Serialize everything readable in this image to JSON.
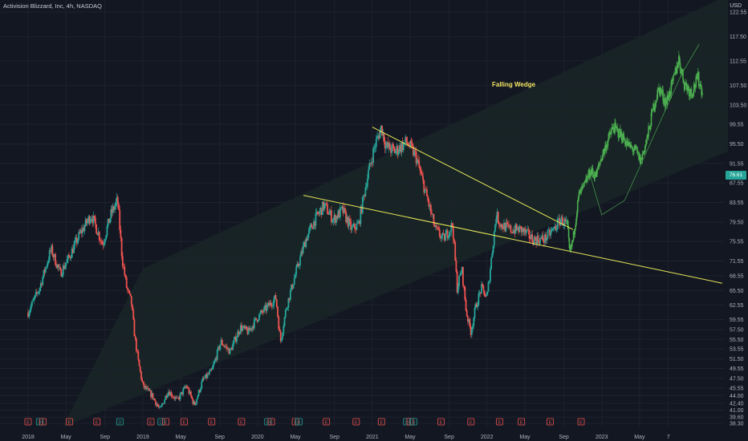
{
  "header": {
    "title": "Activision Blizzard, Inc, 4h, NASDAQ",
    "currency": "USD",
    "last_price": "76.61"
  },
  "annotation": "Falling Wedge",
  "colors": {
    "background": "#131722",
    "up": "#26a69a",
    "down": "#ef5350",
    "projection": "#4caf50",
    "wedge": "#e8e85a",
    "channel": "#1f3a2a",
    "event_earnings": "#ef5350",
    "event_dividend": "#26a69a"
  },
  "chart_data": {
    "type": "candlestick",
    "title": "Activision Blizzard, Inc, 4h, NASDAQ",
    "ylabel": "USD",
    "ylim": [
      38.3,
      125
    ],
    "y_ticks": [
      "122.55",
      "117.50",
      "112.55",
      "107.50",
      "103.50",
      "99.55",
      "95.50",
      "91.55",
      "87.55",
      "83.55",
      "79.50",
      "75.55",
      "71.55",
      "68.55",
      "65.50",
      "62.55",
      "59.55",
      "57.50",
      "55.50",
      "53.55",
      "51.50",
      "49.55",
      "47.50",
      "45.55",
      "44.00",
      "42.40",
      "41.00",
      "39.60",
      "38.30"
    ],
    "x_ticks": [
      "2018",
      "May",
      "Sep",
      "2019",
      "May",
      "Sep",
      "2020",
      "May",
      "Sep",
      "2021",
      "May",
      "Sep",
      "2022",
      "May",
      "Sep",
      "2023",
      "May",
      "7"
    ],
    "price_path": [
      [
        2018.0,
        61
      ],
      [
        2018.1,
        66
      ],
      [
        2018.2,
        74
      ],
      [
        2018.28,
        69
      ],
      [
        2018.35,
        72
      ],
      [
        2018.45,
        77
      ],
      [
        2018.55,
        81
      ],
      [
        2018.65,
        75
      ],
      [
        2018.72,
        81
      ],
      [
        2018.78,
        84
      ],
      [
        2018.82,
        72
      ],
      [
        2018.86,
        66
      ],
      [
        2018.9,
        63
      ],
      [
        2018.93,
        56
      ],
      [
        2018.96,
        51
      ],
      [
        2019.0,
        46
      ],
      [
        2019.08,
        44
      ],
      [
        2019.15,
        41
      ],
      [
        2019.22,
        45
      ],
      [
        2019.3,
        43
      ],
      [
        2019.38,
        46
      ],
      [
        2019.45,
        42
      ],
      [
        2019.52,
        47
      ],
      [
        2019.6,
        49
      ],
      [
        2019.68,
        55
      ],
      [
        2019.76,
        53
      ],
      [
        2019.85,
        58
      ],
      [
        2019.92,
        57
      ],
      [
        2020.0,
        60
      ],
      [
        2020.08,
        62
      ],
      [
        2020.16,
        64
      ],
      [
        2020.2,
        55
      ],
      [
        2020.25,
        62
      ],
      [
        2020.32,
        68
      ],
      [
        2020.42,
        76
      ],
      [
        2020.5,
        80
      ],
      [
        2020.58,
        83
      ],
      [
        2020.66,
        80
      ],
      [
        2020.74,
        82
      ],
      [
        2020.82,
        78
      ],
      [
        2020.88,
        79
      ],
      [
        2020.95,
        88
      ],
      [
        2021.02,
        95
      ],
      [
        2021.08,
        99
      ],
      [
        2021.12,
        95
      ],
      [
        2021.2,
        94
      ],
      [
        2021.3,
        96
      ],
      [
        2021.38,
        93
      ],
      [
        2021.46,
        86
      ],
      [
        2021.55,
        78
      ],
      [
        2021.62,
        76
      ],
      [
        2021.7,
        79
      ],
      [
        2021.74,
        66
      ],
      [
        2021.78,
        70
      ],
      [
        2021.82,
        61
      ],
      [
        2021.86,
        57
      ],
      [
        2021.9,
        62
      ],
      [
        2021.95,
        66
      ],
      [
        2022.0,
        64
      ],
      [
        2022.08,
        81
      ],
      [
        2022.12,
        79
      ],
      [
        2022.2,
        78
      ],
      [
        2022.3,
        78
      ],
      [
        2022.4,
        76
      ],
      [
        2022.5,
        76
      ],
      [
        2022.58,
        78
      ],
      [
        2022.64,
        80
      ],
      [
        2022.7,
        79
      ]
    ],
    "projection_path": [
      [
        2022.7,
        79
      ],
      [
        2022.72,
        73
      ],
      [
        2022.75,
        76
      ],
      [
        2022.8,
        85
      ],
      [
        2022.85,
        87
      ],
      [
        2022.9,
        90
      ],
      [
        2022.95,
        89
      ],
      [
        2023.0,
        93
      ],
      [
        2023.05,
        96
      ],
      [
        2023.1,
        99
      ],
      [
        2023.18,
        97
      ],
      [
        2023.24,
        95
      ],
      [
        2023.3,
        94
      ],
      [
        2023.34,
        92
      ],
      [
        2023.4,
        97
      ],
      [
        2023.45,
        103
      ],
      [
        2023.5,
        107
      ],
      [
        2023.56,
        104
      ],
      [
        2023.62,
        108
      ],
      [
        2023.67,
        113
      ],
      [
        2023.72,
        108
      ],
      [
        2023.78,
        106
      ],
      [
        2023.84,
        109
      ],
      [
        2023.88,
        106
      ]
    ],
    "projection_curve": [
      [
        2022.9,
        89
      ],
      [
        2023.0,
        81
      ],
      [
        2023.2,
        84
      ],
      [
        2023.45,
        97
      ],
      [
        2023.7,
        110
      ],
      [
        2023.85,
        116
      ]
    ],
    "wedge_upper": [
      [
        2021.0,
        99
      ],
      [
        2022.75,
        78
      ]
    ],
    "wedge_lower": [
      [
        2020.4,
        85
      ],
      [
        2024.05,
        67
      ]
    ],
    "channel": {
      "upper": [
        [
          2019.0,
          70
        ],
        [
          2024.1,
          126
        ]
      ],
      "lower": [
        [
          2018.3,
          37.5
        ],
        [
          2024.1,
          94
        ]
      ]
    },
    "events": [
      {
        "x": 2018.0,
        "type": "E"
      },
      {
        "x": 2018.1,
        "type": "D"
      },
      {
        "x": 2018.13,
        "type": "E"
      },
      {
        "x": 2018.36,
        "type": "E"
      },
      {
        "x": 2018.6,
        "type": "E"
      },
      {
        "x": 2018.8,
        "type": "D"
      },
      {
        "x": 2019.07,
        "type": "E"
      },
      {
        "x": 2019.16,
        "type": "D"
      },
      {
        "x": 2019.2,
        "type": "E"
      },
      {
        "x": 2019.36,
        "type": "E"
      },
      {
        "x": 2019.6,
        "type": "E"
      },
      {
        "x": 2019.86,
        "type": "E"
      },
      {
        "x": 2020.09,
        "type": "D"
      },
      {
        "x": 2020.12,
        "type": "E"
      },
      {
        "x": 2020.33,
        "type": "E"
      },
      {
        "x": 2020.36,
        "type": "D"
      },
      {
        "x": 2020.6,
        "type": "E"
      },
      {
        "x": 2020.86,
        "type": "E"
      },
      {
        "x": 2021.08,
        "type": "E"
      },
      {
        "x": 2021.3,
        "type": "D"
      },
      {
        "x": 2021.33,
        "type": "E"
      },
      {
        "x": 2021.36,
        "type": "D"
      },
      {
        "x": 2021.6,
        "type": "E"
      },
      {
        "x": 2021.86,
        "type": "E"
      },
      {
        "x": 2022.11,
        "type": "E"
      },
      {
        "x": 2022.3,
        "type": "E"
      },
      {
        "x": 2022.55,
        "type": "E"
      },
      {
        "x": 2022.82,
        "type": "E"
      }
    ]
  }
}
